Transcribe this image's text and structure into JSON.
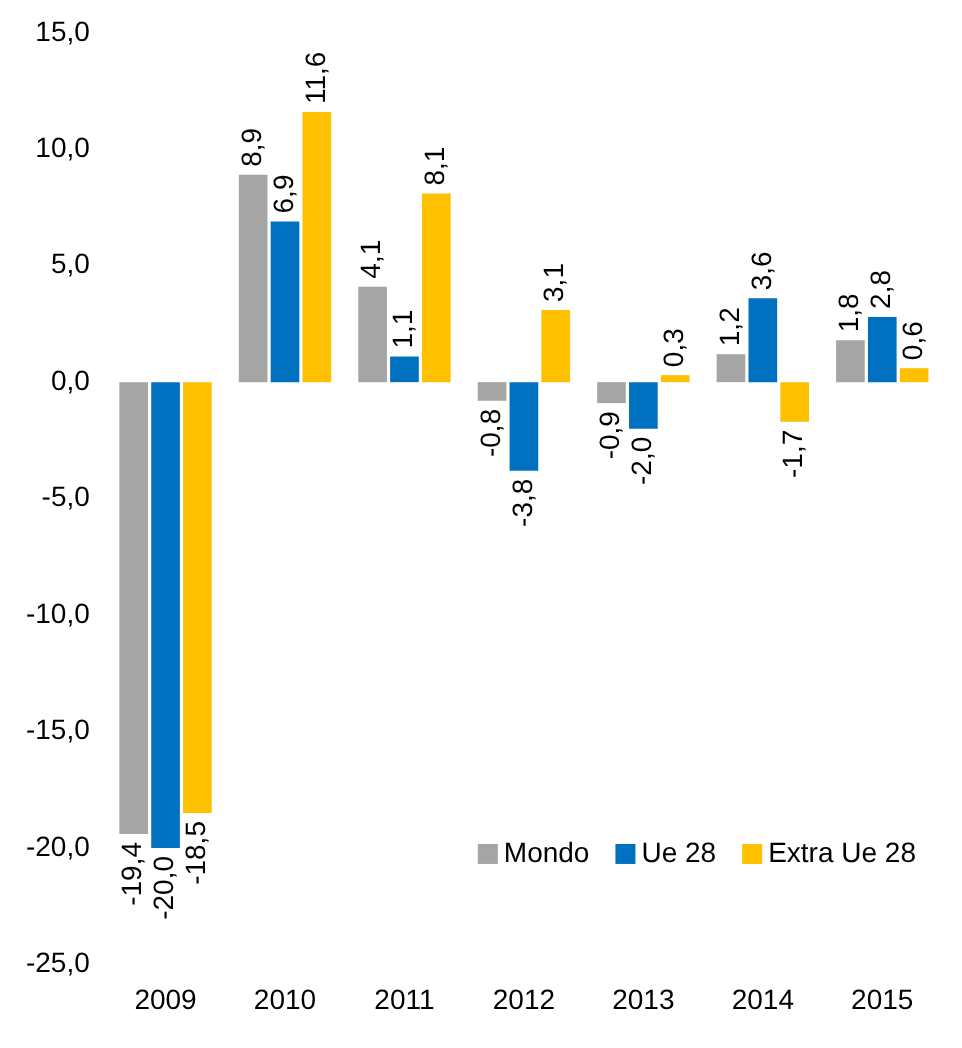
{
  "chart_data": {
    "type": "bar",
    "categories": [
      "2009",
      "2010",
      "2011",
      "2012",
      "2013",
      "2014",
      "2015"
    ],
    "series": [
      {
        "name": "Mondo",
        "color": "#a5a5a5",
        "values": [
          -19.4,
          8.9,
          4.1,
          -0.8,
          -0.9,
          1.2,
          1.8
        ],
        "value_labels": [
          "-19,4",
          "8,9",
          "4,1",
          "-0,8",
          "-0,9",
          "1,2",
          "1,8"
        ]
      },
      {
        "name": "Ue 28",
        "color": "#0070c0",
        "values": [
          -20.0,
          6.9,
          1.1,
          -3.8,
          -2.0,
          3.6,
          2.8
        ],
        "value_labels": [
          "-20,0",
          "6,9",
          "1,1",
          "-3,8",
          "-2,0",
          "3,6",
          "2,8"
        ]
      },
      {
        "name": "Extra Ue 28",
        "color": "#ffc000",
        "values": [
          -18.5,
          11.6,
          8.1,
          3.1,
          0.3,
          -1.7,
          0.6
        ],
        "value_labels": [
          "-18,5",
          "11,6",
          "8,1",
          "3,1",
          "0,3",
          "-1,7",
          "0,6"
        ]
      }
    ],
    "ylim": [
      -25,
      15
    ],
    "yticks": [
      {
        "value": -25,
        "label": "-25,0"
      },
      {
        "value": -20,
        "label": "-20,0"
      },
      {
        "value": -15,
        "label": "-15,0"
      },
      {
        "value": -10,
        "label": "-10,0"
      },
      {
        "value": -5,
        "label": "-5,0"
      },
      {
        "value": 0,
        "label": "0,0"
      },
      {
        "value": 5,
        "label": "5,0"
      },
      {
        "value": 10,
        "label": "10,0"
      },
      {
        "value": 15,
        "label": "15,0"
      }
    ],
    "grid": false,
    "legend": "bottom right"
  }
}
